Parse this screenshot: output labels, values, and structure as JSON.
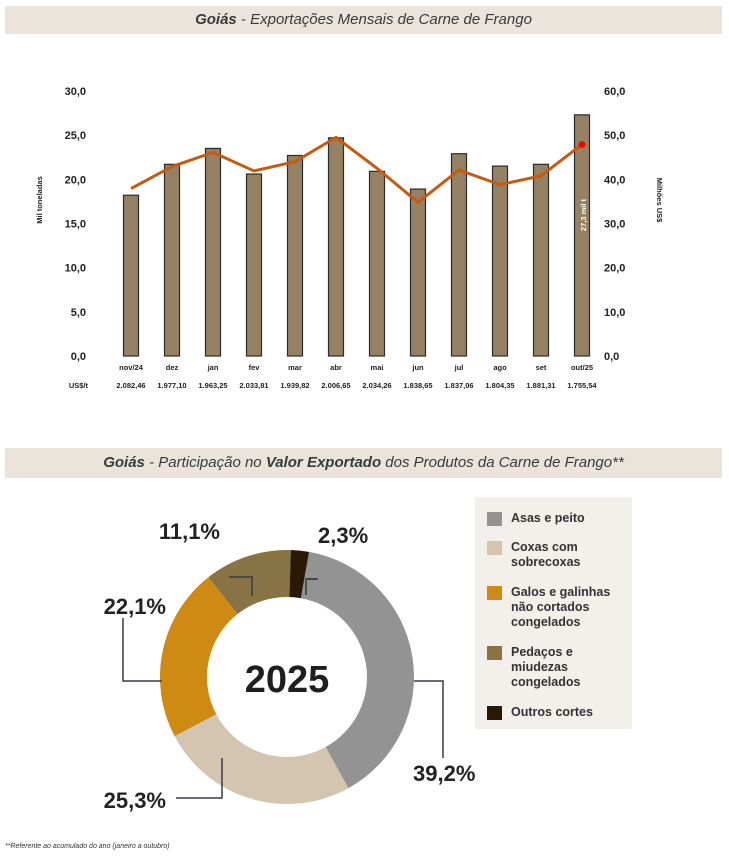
{
  "chart_data": [
    {
      "type": "bar+line",
      "title_bold": "Goiás",
      "title_rest": " - Exportações Mensais de Carne de Frango",
      "categories": [
        "nov/24",
        "dez",
        "jan",
        "fev",
        "mar",
        "abr",
        "mai",
        "jun",
        "jul",
        "ago",
        "set",
        "out/25"
      ],
      "ylabel": "Mil toneladas",
      "y2label": "Milhões US$",
      "ylim": [
        0,
        30
      ],
      "y2lim": [
        0,
        60
      ],
      "yticks": [
        "0,0",
        "5,0",
        "10,0",
        "15,0",
        "20,0",
        "25,0",
        "30,0"
      ],
      "y2ticks": [
        "0,0",
        "10,0",
        "20,0",
        "30,0",
        "40,0",
        "50,0",
        "60,0"
      ],
      "series": [
        {
          "name": "Mil toneladas",
          "type": "bar",
          "axis": "left",
          "color": "#958163",
          "values": [
            18.2,
            21.7,
            23.5,
            20.6,
            22.7,
            24.7,
            20.9,
            18.9,
            22.9,
            21.5,
            21.7,
            27.3
          ]
        },
        {
          "name": "Milhões US$",
          "type": "line",
          "axis": "right",
          "color": "#c55a11",
          "values": [
            37.9,
            42.9,
            46.1,
            41.9,
            44.0,
            49.5,
            42.5,
            34.8,
            42.1,
            38.8,
            40.8,
            47.9
          ]
        }
      ],
      "annotation": "27,3 mil t",
      "price_row_label": "US$/t",
      "price_row": [
        "2.082,46",
        "1.977,10",
        "1.963,25",
        "2.033,81",
        "1.939,82",
        "2.006,65",
        "2.034,26",
        "1.838,65",
        "1.837,06",
        "1.804,35",
        "1.881,31",
        "1.755,54"
      ]
    },
    {
      "type": "pie",
      "donut": true,
      "title_bold1": "Goiás",
      "title_mid1": " - Participação no ",
      "title_bold2": "Valor Exportado",
      "title_mid2": " dos Produtos da Carne de Frango**",
      "center_label": "2025",
      "slices": [
        {
          "label": "Asas e peito",
          "value": 39.2,
          "text": "39,2%",
          "color": "#939393"
        },
        {
          "label": "Coxas com sobrecoxas",
          "value": 25.3,
          "text": "25,3%",
          "color": "#d3c5b0"
        },
        {
          "label": "Galos e galinhas não cortados congelados",
          "value": 22.1,
          "text": "22,1%",
          "color": "#cf8a14"
        },
        {
          "label": "Pedaços e miudezas congelados",
          "value": 11.1,
          "text": "11,1%",
          "color": "#877344"
        },
        {
          "label": "Outros cortes",
          "value": 2.3,
          "text": "2,3%",
          "color": "#2a1a05"
        }
      ],
      "legend_placement": "right",
      "footnote": "**Referente ao acumulado do ano (janeiro a outubro)"
    }
  ]
}
